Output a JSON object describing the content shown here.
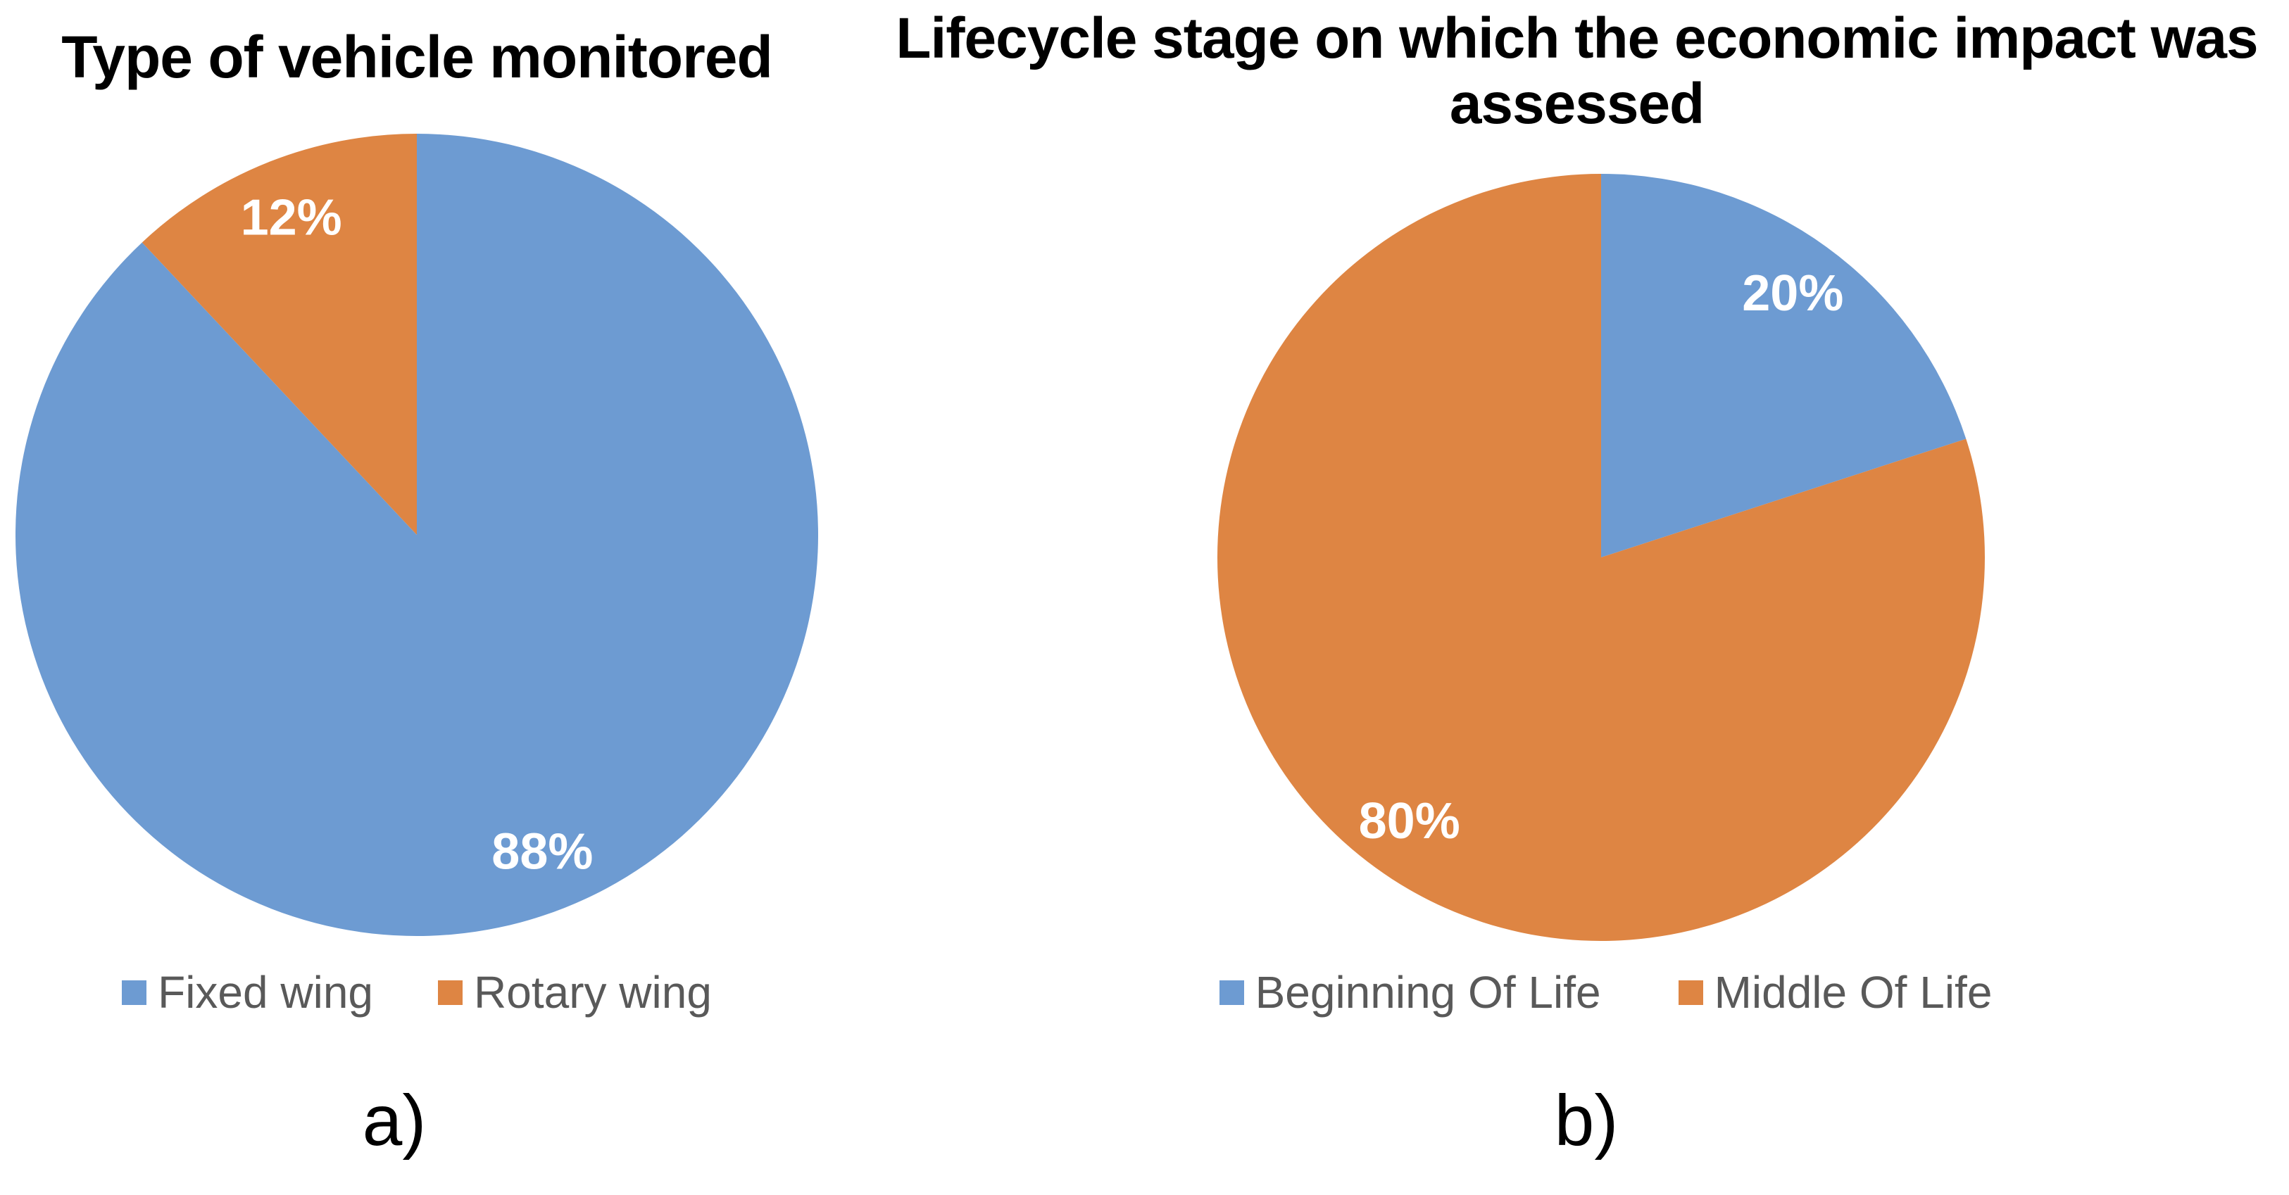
{
  "background": "#ffffff",
  "text_colors": {
    "title": "#000000",
    "legend": "#595959",
    "slice_label": "#ffffff"
  },
  "palette": {
    "blue": "#6D9BD2",
    "orange": "#DE8543"
  },
  "charts": [
    {
      "panel_label": "a)",
      "title": "Type of vehicle monitored",
      "title_lines": [
        "Type of vehicle monitored"
      ],
      "legend": [
        {
          "label": "Fixed wing",
          "color": "#6D9BD2"
        },
        {
          "label": "Rotary wing",
          "color": "#DE8543"
        }
      ],
      "chart_data": {
        "type": "pie",
        "title": "Type of vehicle monitored",
        "categories": [
          "Fixed wing",
          "Rotary wing"
        ],
        "values": [
          88,
          12
        ],
        "unit": "percent",
        "slice_labels": [
          "88%",
          "12%"
        ],
        "slice_colors": [
          "#6D9BD2",
          "#DE8543"
        ],
        "start_position": "12-o-clock",
        "direction": "clockwise",
        "legend_position": "bottom"
      }
    },
    {
      "panel_label": "b)",
      "title": "Lifecycle stage on which the economic impact was assessed",
      "title_lines": [
        "Lifecycle stage on which the economic impact was",
        "assessed"
      ],
      "legend": [
        {
          "label": "Beginning Of Life",
          "color": "#6D9BD2"
        },
        {
          "label": "Middle Of Life",
          "color": "#DE8543"
        }
      ],
      "chart_data": {
        "type": "pie",
        "title": "Lifecycle stage on which the economic impact was assessed",
        "categories": [
          "Beginning Of Life",
          "Middle Of Life"
        ],
        "values": [
          20,
          80
        ],
        "unit": "percent",
        "slice_labels": [
          "20%",
          "80%"
        ],
        "slice_colors": [
          "#6D9BD2",
          "#DE8543"
        ],
        "start_position": "12-o-clock",
        "direction": "clockwise",
        "legend_position": "bottom"
      }
    }
  ]
}
